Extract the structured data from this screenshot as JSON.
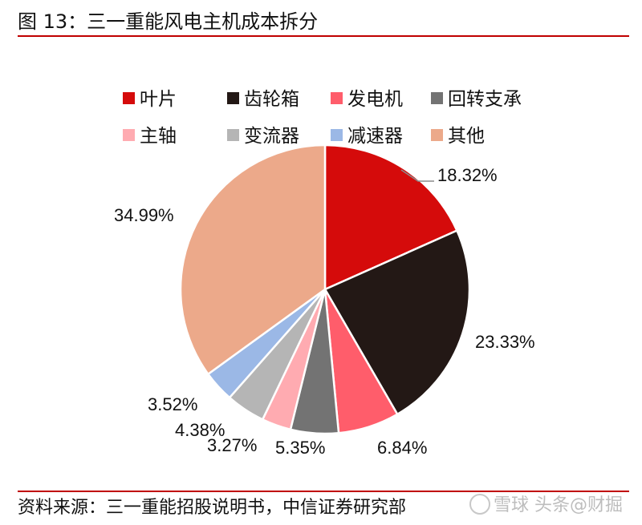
{
  "figure": {
    "title": "图 13：三一重能风电主机成本拆分",
    "source": "资料来源：三一重能招股说明书，中信证券研究部",
    "watermark_xueqiu": "雪球",
    "watermark_toutiao": "头条@财掘"
  },
  "chart_data": {
    "type": "pie",
    "title": "三一重能风电主机成本拆分",
    "legend_position": "top",
    "slices": [
      {
        "name": "叶片",
        "value": 18.32,
        "label": "18.32%",
        "color": "#d50b0b"
      },
      {
        "name": "齿轮箱",
        "value": 23.33,
        "label": "23.33%",
        "color": "#231815"
      },
      {
        "name": "发电机",
        "value": 6.84,
        "label": "6.84%",
        "color": "#ff5d6b"
      },
      {
        "name": "回转支承",
        "value": 5.35,
        "label": "5.35%",
        "color": "#737373"
      },
      {
        "name": "主轴",
        "value": 3.27,
        "label": "3.27%",
        "color": "#ffabb1"
      },
      {
        "name": "变流器",
        "value": 4.38,
        "label": "4.38%",
        "color": "#b5b5b5"
      },
      {
        "name": "减速器",
        "value": 3.52,
        "label": "3.52%",
        "color": "#9bb8e6"
      },
      {
        "name": "其他",
        "value": 34.99,
        "label": "34.99%",
        "color": "#eca98a"
      }
    ]
  }
}
